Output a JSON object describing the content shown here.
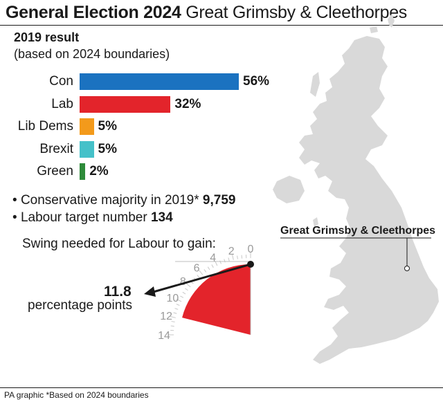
{
  "header": {
    "title_bold": "General Election 2024",
    "title_rest": "Great Grimsby & Cleethorpes"
  },
  "result": {
    "heading": "2019 result",
    "subheading": "(based on 2024 boundaries)"
  },
  "chart_data": [
    {
      "type": "bar",
      "orientation": "horizontal",
      "categories": [
        "Con",
        "Lab",
        "Lib Dems",
        "Brexit",
        "Green"
      ],
      "values": [
        56,
        32,
        5,
        5,
        2
      ],
      "value_labels": [
        "56%",
        "32%",
        "5%",
        "5%",
        "2%"
      ],
      "colors": [
        "#1b72c0",
        "#e3242b",
        "#f39a1b",
        "#45c1c9",
        "#2e8b3a"
      ],
      "xlim": [
        0,
        100
      ]
    },
    {
      "type": "gauge",
      "value": 11.8,
      "range": [
        0,
        14
      ],
      "tick_labels": [
        "0",
        "2",
        "4",
        "6",
        "8",
        "10",
        "12",
        "14"
      ],
      "fill_color": "#e3242b"
    }
  ],
  "facts": {
    "majority_label": "Conservative majority in 2019*",
    "majority_value": "9,759",
    "target_label": "Labour target number",
    "target_value": "134"
  },
  "swing": {
    "title": "Swing needed for Labour to gain:",
    "value": "11.8",
    "unit": "percentage points"
  },
  "map": {
    "label": "Great Grimsby & Cleethorpes",
    "land_color": "#d9d9d9"
  },
  "footer": {
    "text": "PA graphic *Based on 2024 boundaries"
  }
}
